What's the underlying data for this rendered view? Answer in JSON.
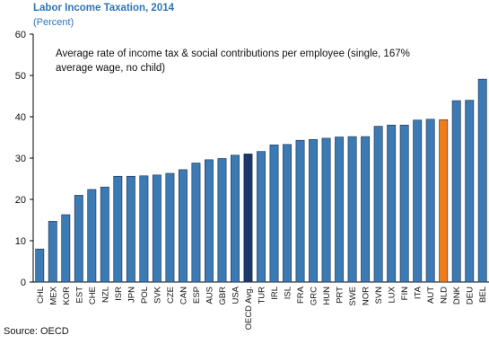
{
  "chart_data": {
    "type": "bar",
    "title": "Labor Income Taxation, 2014",
    "subtitle": "(Percent)",
    "annotation": "Average rate of income tax & social contributions per employee (single, 167% average wage, no child)",
    "source": "Source: OECD",
    "categories": [
      "CHL",
      "MEX",
      "KOR",
      "EST",
      "CHE",
      "NZL",
      "ISR",
      "JPN",
      "POL",
      "SVK",
      "CZE",
      "CAN",
      "ESP",
      "AUS",
      "GBR",
      "USA",
      "OECD Avg.",
      "TUR",
      "IRL",
      "ISL",
      "FRA",
      "GRC",
      "HUN",
      "PRT",
      "SWE",
      "NOR",
      "SVN",
      "LUX",
      "FIN",
      "ITA",
      "AUT",
      "NLD",
      "DNK",
      "DEU",
      "BEL"
    ],
    "values": [
      8.0,
      14.7,
      16.3,
      21.0,
      22.4,
      23.0,
      25.6,
      25.6,
      25.7,
      25.9,
      26.3,
      27.2,
      28.8,
      29.6,
      29.9,
      30.7,
      31.0,
      31.6,
      33.2,
      33.3,
      34.3,
      34.5,
      34.8,
      35.1,
      35.2,
      35.2,
      37.7,
      38.0,
      38.0,
      39.2,
      39.4,
      39.3,
      43.9,
      44.0,
      49.1
    ],
    "highlight_colors": {
      "OECD Avg.": "#1c3868",
      "NLD": "#f07d1c"
    },
    "bar_color": "#3c7ab4",
    "ylim": [
      0,
      60
    ],
    "yticks": [
      0,
      10,
      20,
      30,
      40,
      50,
      60
    ],
    "grid": false,
    "legend": "none"
  }
}
